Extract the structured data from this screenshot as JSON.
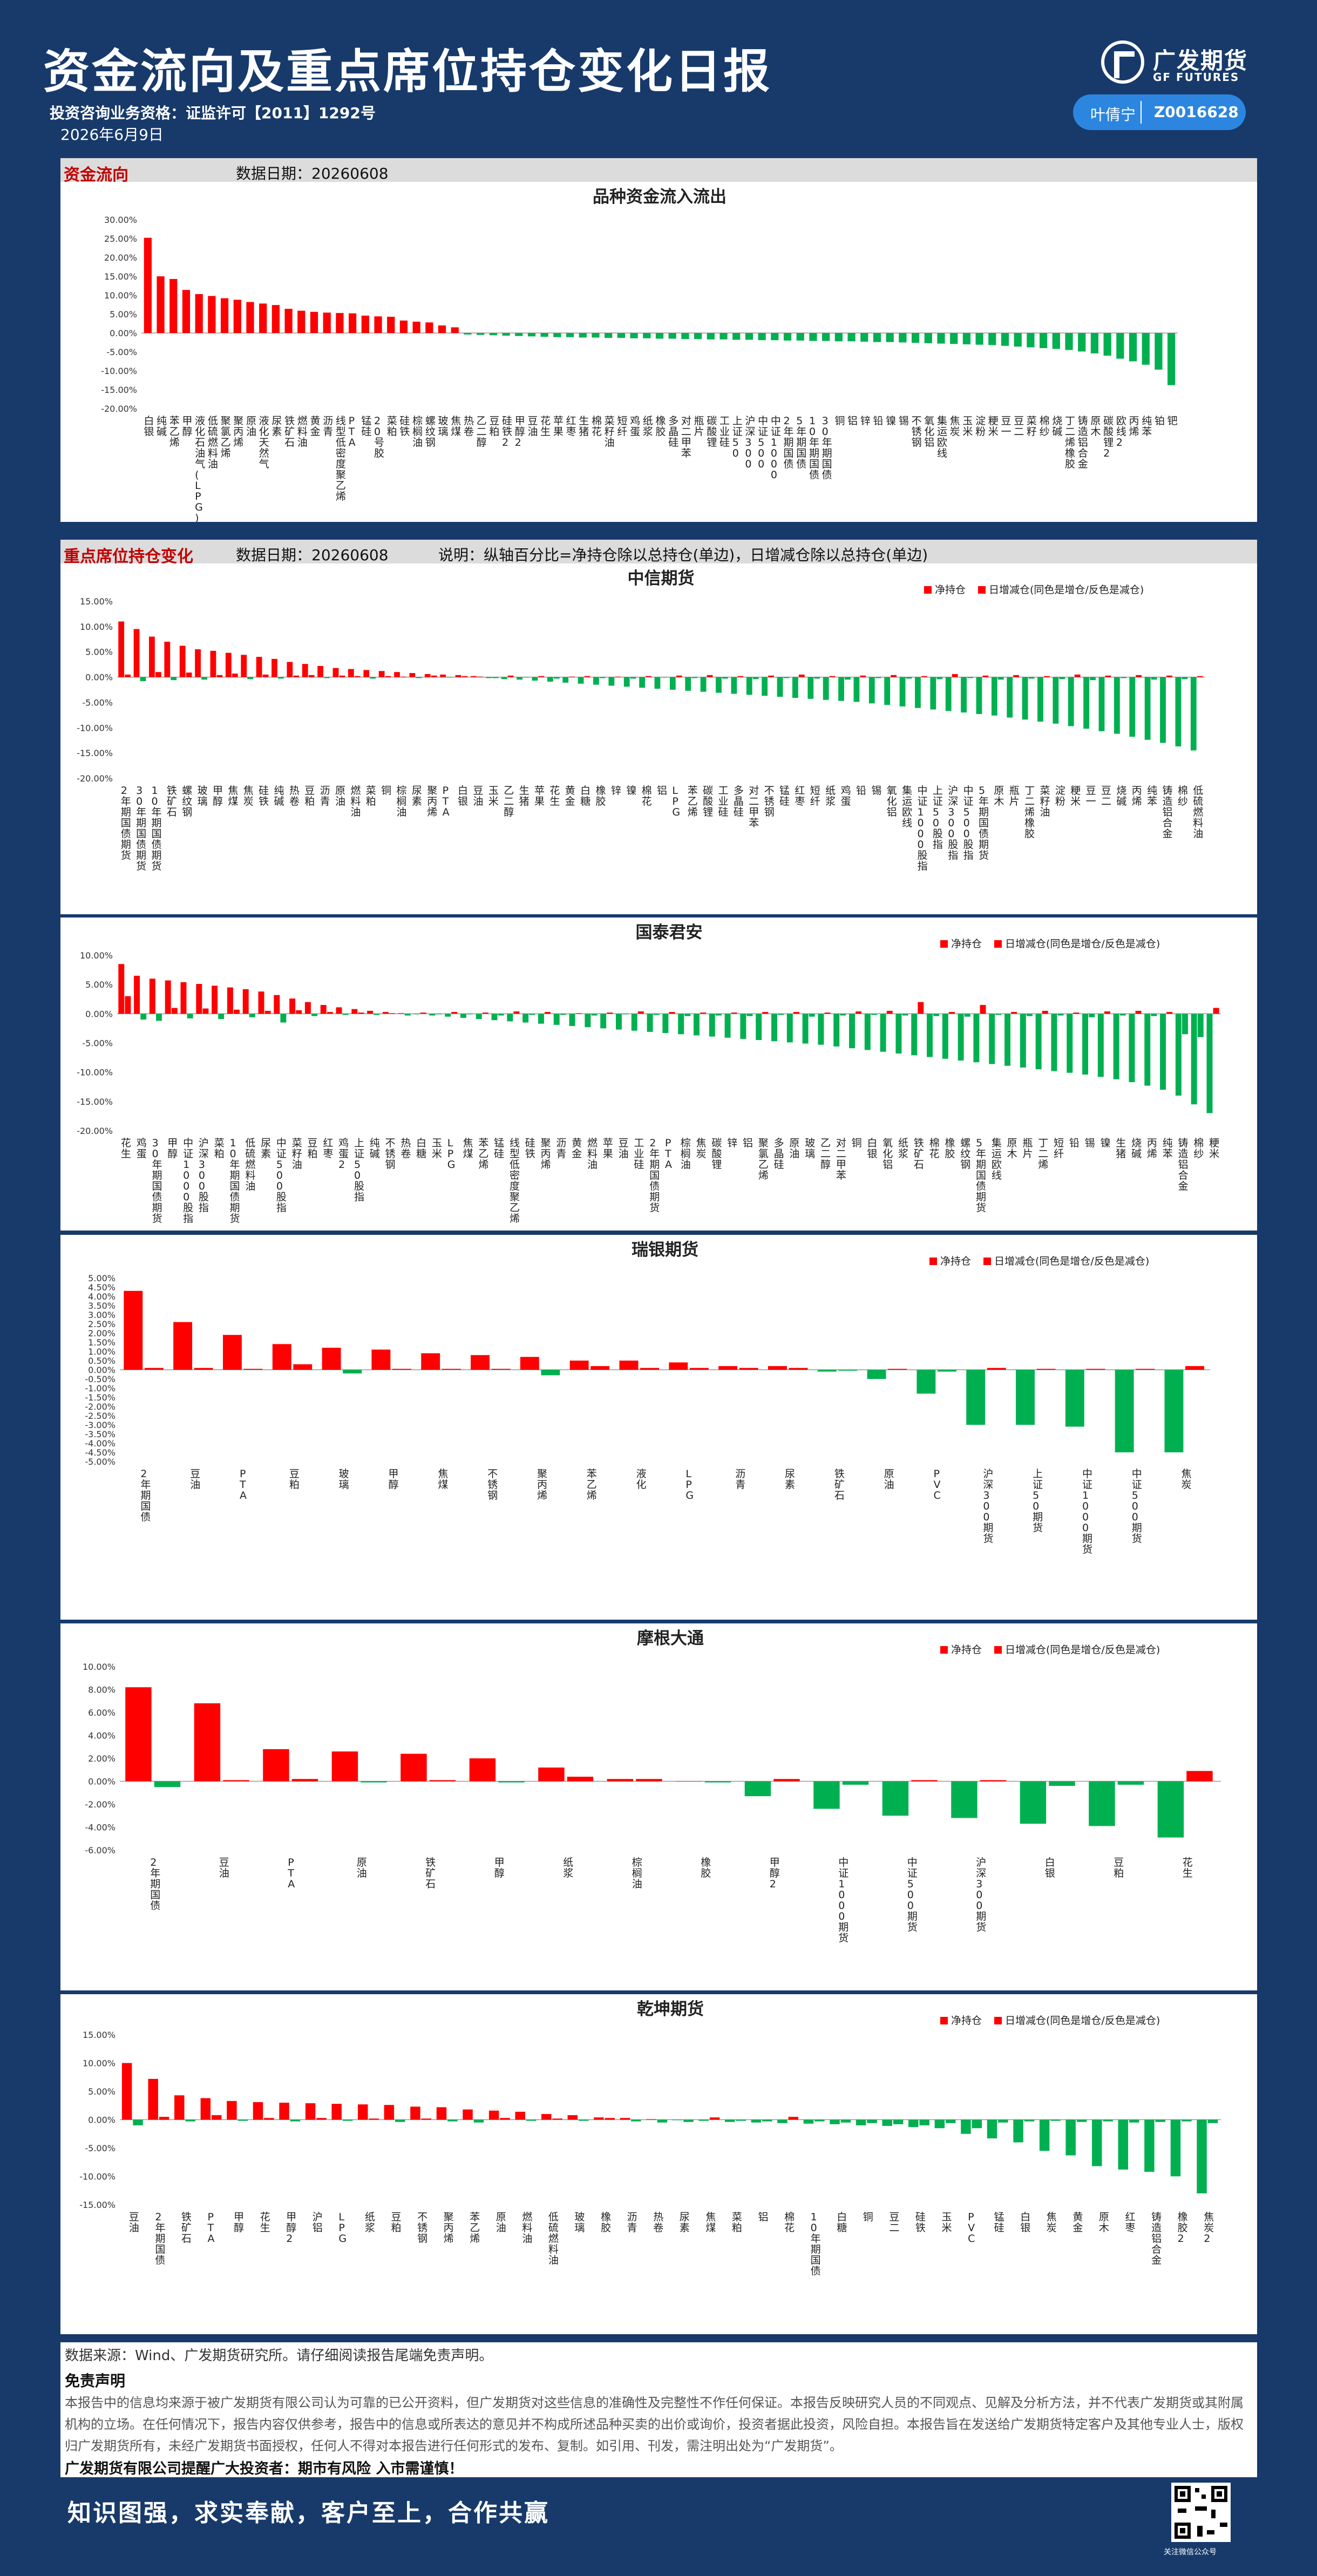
{
  "header": {
    "title": "资金流向及重点席位持仓变化日报",
    "license": "投资咨询业务资格：证监许可【2011】1292号",
    "date": "2026年6月9日",
    "logo_cn": "广发期货",
    "logo_en": "GF FUTURES",
    "analyst_name": "叶倩宁",
    "analyst_id": "Z0016628"
  },
  "colors": {
    "background": "#173a6b",
    "net": "#ff0000",
    "increase": "#00b050",
    "section_title": "#c00000"
  },
  "section1": {
    "name": "资金流向",
    "date": "数据日期：20260608"
  },
  "section2": {
    "name": "重点席位持仓变化",
    "date": "数据日期：20260608",
    "note": "说明：纵轴百分比=净持仓除以总持仓(单边)，日增减仓除以总持仓(单边)"
  },
  "legend": {
    "net": "净持仓",
    "change": "日增减仓(同色是增仓/反色是减仓)"
  },
  "chart_data": [
    {
      "type": "bar",
      "title": "品种资金流入流出",
      "ylabel": "",
      "ylim": [
        -20,
        30
      ],
      "ystep": 5,
      "categories": [
        "白银",
        "纯碱",
        "苯乙烯",
        "甲醇",
        "液化石油气(LPG)",
        "低硫燃料油",
        "聚氯乙烯",
        "聚丙烯",
        "原油",
        "液化天然气",
        "尿素",
        "铁矿石",
        "燃料油",
        "黄金",
        "沥青",
        "线型低密度聚乙烯",
        "PTA",
        "锰硅",
        "20号胶",
        "菜粕",
        "硅铁",
        "棕榈油",
        "螺纹钢",
        "玻璃",
        "焦煤",
        "热卷",
        "乙二醇",
        "豆粕",
        "硅铁2",
        "甲醇2",
        "豆油",
        "花生",
        "苹果",
        "红枣",
        "生猪",
        "棉花",
        "菜籽油",
        "短纤",
        "鸡蛋",
        "纸浆",
        "橡胶",
        "多晶硅",
        "对二甲苯",
        "瓶片",
        "碳酸锂",
        "工业硅",
        "上证50",
        "沪深300",
        "中证500",
        "中证1000",
        "2年期国债",
        "5年期国债",
        "10年期国债",
        "30年期国债",
        "铜",
        "铝",
        "锌",
        "铅",
        "镍",
        "锡",
        "不锈钢",
        "氧化铝",
        "集运欧线",
        "焦炭",
        "玉米",
        "淀粉",
        "粳米",
        "豆一",
        "豆二",
        "菜籽",
        "棉纱",
        "烧碱",
        "丁二烯橡胶",
        "铸造铝合金",
        "原木",
        "碳酸锂2",
        "欧线2",
        "丙烯",
        "纯苯",
        "铂",
        "钯"
      ],
      "values": [
        25.2,
        15,
        14.3,
        11.4,
        10.3,
        9.8,
        9.2,
        8.8,
        8.2,
        7.8,
        7.4,
        6.4,
        5.9,
        5.6,
        5.4,
        5.3,
        5.2,
        4.6,
        4.4,
        4.3,
        3.3,
        3.0,
        2.8,
        2.0,
        1.5,
        -0.4,
        -0.5,
        -0.6,
        -0.7,
        -0.8,
        -0.9,
        -1.0,
        -1.1,
        -1.1,
        -1.2,
        -1.2,
        -1.3,
        -1.3,
        -1.4,
        -1.4,
        -1.5,
        -1.5,
        -1.6,
        -1.6,
        -1.7,
        -1.7,
        -1.8,
        -1.8,
        -1.9,
        -1.9,
        -2.0,
        -2.0,
        -2.1,
        -2.1,
        -2.2,
        -2.2,
        -2.3,
        -2.4,
        -2.4,
        -2.5,
        -2.6,
        -2.7,
        -2.8,
        -2.9,
        -3.0,
        -3.1,
        -3.2,
        -3.4,
        -3.6,
        -3.8,
        -4.0,
        -4.2,
        -4.5,
        -4.9,
        -5.4,
        -6.0,
        -6.8,
        -7.5,
        -8.4,
        -9.7,
        -13.8
      ]
    },
    {
      "type": "bar",
      "title": "中信期货",
      "ylim": [
        -20,
        15
      ],
      "ystep": 5,
      "categories": [
        "2年期国债期货",
        "30年期国债期货",
        "10年期国债期货",
        "铁矿石",
        "螺纹钢",
        "玻璃",
        "甲醇",
        "焦煤",
        "焦炭",
        "硅铁",
        "纯碱",
        "热卷",
        "豆粕",
        "沥青",
        "原油",
        "燃料油",
        "菜粕",
        "铜",
        "棕榈油",
        "尿素",
        "聚丙烯",
        "PTA",
        "白银",
        "豆油",
        "玉米",
        "乙二醇",
        "生猪",
        "苹果",
        "花生",
        "黄金",
        "白糖",
        "橡胶",
        "锌",
        "镍",
        "棉花",
        "铝",
        "LPG",
        "苯乙烯",
        "碳酸锂",
        "工业硅",
        "多晶硅",
        "对二甲苯",
        "不锈钢",
        "锰硅",
        "红枣",
        "短纤",
        "纸浆",
        "鸡蛋",
        "铅",
        "锡",
        "氧化铝",
        "集运欧线",
        "中证1000股指",
        "上证50股指",
        "沪深300股指",
        "中证500股指",
        "5年期国债期货",
        "原木",
        "瓶片",
        "丁二烯橡胶",
        "菜籽油",
        "淀粉",
        "粳米",
        "豆一",
        "豆二",
        "烧碱",
        "丙烯",
        "纯苯",
        "铸造铝合金",
        "棉纱",
        "低硫燃料油"
      ],
      "net": [
        11.0,
        9.5,
        8.0,
        7.0,
        6.2,
        5.5,
        5.2,
        4.8,
        4.4,
        4.0,
        3.6,
        3.0,
        2.6,
        2.2,
        1.8,
        1.6,
        1.4,
        1.2,
        1.0,
        0.8,
        0.6,
        0.5,
        0.4,
        0.2,
        -0.2,
        -0.4,
        -0.5,
        -0.7,
        -0.9,
        -1.1,
        -1.3,
        -1.5,
        -1.7,
        -1.9,
        -2.1,
        -2.3,
        -2.5,
        -2.7,
        -2.9,
        -3.1,
        -3.3,
        -3.5,
        -3.7,
        -3.9,
        -4.1,
        -4.3,
        -4.5,
        -4.7,
        -4.9,
        -5.2,
        -5.5,
        -5.8,
        -6.1,
        -6.4,
        -6.7,
        -7.0,
        -7.3,
        -7.6,
        -8.0,
        -8.4,
        -8.8,
        -9.2,
        -9.7,
        -10.2,
        -10.7,
        -11.2,
        -11.8,
        -12.4,
        -13.0,
        -13.7,
        -14.5
      ],
      "change": [
        0.5,
        -0.8,
        1.0,
        -0.6,
        0.9,
        -0.5,
        0.4,
        0.7,
        -0.4,
        0.5,
        -0.3,
        0.3,
        0.4,
        -0.2,
        0.3,
        0.2,
        -0.3,
        0.2,
        0.1,
        -0.2,
        0.3,
        -0.1,
        0.2,
        0.1,
        -0.2,
        0.3,
        -0.1,
        0.2,
        -0.3,
        0.1,
        0.2,
        -0.2,
        0.1,
        -0.3,
        0.2,
        -0.1,
        0.3,
        -0.2,
        0.4,
        -0.3,
        0.2,
        -0.4,
        0.3,
        -0.2,
        0.5,
        -0.3,
        0.2,
        -0.5,
        0.3,
        -0.2,
        0.4,
        -0.3,
        0.2,
        -0.4,
        0.6,
        -0.2,
        0.3,
        -0.5,
        0.4,
        -0.3,
        0.2,
        -0.4,
        0.5,
        -0.6,
        0.3,
        -0.2,
        0.4,
        -0.5,
        0.3,
        -0.4,
        0.2
      ]
    },
    {
      "type": "bar",
      "title": "国泰君安",
      "ylim": [
        -20,
        10
      ],
      "ystep": 5,
      "categories": [
        "花生",
        "鸡蛋",
        "30年期国债期货",
        "甲醇",
        "中证1000股指",
        "沪深300股指",
        "菜粕",
        "10年期国债期货",
        "低硫燃料油",
        "尿素",
        "中证500股指",
        "菜籽油",
        "豆粕",
        "红枣",
        "鸡蛋2",
        "上证50股指",
        "纯碱",
        "不锈钢",
        "热卷",
        "白糖",
        "玉米",
        "LPG",
        "焦煤",
        "苯乙烯",
        "锰硅",
        "线型低密度聚乙烯",
        "硅铁",
        "聚丙烯",
        "沥青",
        "黄金",
        "燃料油",
        "苹果",
        "豆油",
        "工业硅",
        "2年期国债期货",
        "PTA",
        "棕榈油",
        "焦炭",
        "碳酸锂",
        "锌",
        "铝",
        "聚氯乙烯",
        "多晶硅",
        "原油",
        "玻璃",
        "乙二醇",
        "对二甲苯",
        "铜",
        "白银",
        "氧化铝",
        "纸浆",
        "铁矿石",
        "棉花",
        "橡胶",
        "螺纹钢",
        "5年期国债期货",
        "集运欧线",
        "原木",
        "瓶片",
        "丁二烯",
        "短纤",
        "铅",
        "锡",
        "镍",
        "生猪",
        "烧碱",
        "丙烯",
        "纯苯",
        "铸造铝合金",
        "棉纱",
        "粳米"
      ],
      "net": [
        8.5,
        6.5,
        6.0,
        5.7,
        5.4,
        5.1,
        4.8,
        4.5,
        4.2,
        3.8,
        3.2,
        2.6,
        2.0,
        1.5,
        1.1,
        0.8,
        0.5,
        0.3,
        0.1,
        -0.1,
        -0.3,
        -0.5,
        -0.7,
        -0.9,
        -1.1,
        -1.3,
        -1.5,
        -1.7,
        -1.9,
        -2.1,
        -2.3,
        -2.5,
        -2.7,
        -2.9,
        -3.1,
        -3.3,
        -3.5,
        -3.7,
        -3.9,
        -4.1,
        -4.3,
        -4.5,
        -4.7,
        -4.9,
        -5.1,
        -5.3,
        -5.6,
        -5.9,
        -6.2,
        -6.5,
        -6.8,
        -7.1,
        -7.4,
        -7.7,
        -8.0,
        -8.3,
        -8.6,
        -8.9,
        -9.2,
        -9.5,
        -9.8,
        -10.1,
        -10.4,
        -10.8,
        -11.2,
        -11.7,
        -12.3,
        -13.0,
        -14.0,
        -15.5,
        -17.0
      ],
      "change": [
        3.0,
        -1.0,
        -1.2,
        1.0,
        -0.8,
        0.9,
        -0.9,
        0.7,
        -0.6,
        0.5,
        -1.5,
        0.6,
        -0.4,
        0.3,
        -0.2,
        0.2,
        -0.2,
        0.1,
        -0.3,
        0.2,
        -0.1,
        0.3,
        -0.1,
        0.2,
        -0.3,
        0.4,
        -0.2,
        0.3,
        -0.2,
        0.1,
        -0.3,
        0.2,
        -0.1,
        0.4,
        -0.2,
        0.3,
        -0.4,
        0.2,
        -0.3,
        0.2,
        -0.4,
        0.3,
        -0.2,
        0.3,
        -0.5,
        0.2,
        -0.3,
        0.4,
        -0.2,
        0.5,
        -0.3,
        2.0,
        -0.4,
        0.3,
        -0.5,
        1.5,
        -0.2,
        0.3,
        -0.4,
        0.5,
        -0.3,
        0.2,
        -0.6,
        0.4,
        -0.3,
        0.5,
        -0.4,
        0.3,
        -3.5,
        -4.0,
        1.0
      ]
    },
    {
      "type": "bar",
      "title": "瑞银期货",
      "ylim": [
        -5,
        5
      ],
      "ystep": 0.5,
      "categories": [
        "2年期国债",
        "豆油",
        "PTA",
        "豆粕",
        "玻璃",
        "甲醇",
        "焦煤",
        "不锈钢",
        "聚丙烯",
        "苯乙烯",
        "液化",
        "LPG",
        "沥青",
        "尿素",
        "铁矿石",
        "原油",
        "PVC",
        "沪深300期货",
        "上证50期货",
        "中证1000期货",
        "中证500期货",
        "焦炭"
      ],
      "net": [
        4.3,
        2.6,
        1.9,
        1.4,
        1.2,
        1.1,
        0.9,
        0.8,
        0.7,
        0.5,
        0.5,
        0.4,
        0.2,
        0.2,
        -0.1,
        -0.5,
        -1.3,
        -3.0,
        -3.0,
        -3.1,
        -4.5,
        -4.5
      ],
      "change": [
        0.1,
        0.1,
        0.05,
        0.3,
        -0.2,
        0.05,
        0.05,
        0.05,
        -0.3,
        0.2,
        0.1,
        0.1,
        0.1,
        0.1,
        -0.05,
        0.05,
        -0.1,
        0.1,
        0.05,
        0.05,
        0.05,
        0.2
      ]
    },
    {
      "type": "bar",
      "title": "摩根大通",
      "ylim": [
        -6,
        10
      ],
      "ystep": 2,
      "categories": [
        "2年期国债",
        "豆油",
        "PTA",
        "原油",
        "铁矿石",
        "甲醇",
        "纸浆",
        "棕榈油",
        "橡胶",
        "甲醇2",
        "中证1000期货",
        "中证500期货",
        "沪深300期货",
        "白银",
        "豆粕",
        "花生"
      ],
      "net": [
        8.2,
        6.8,
        2.8,
        2.6,
        2.4,
        2.0,
        1.2,
        0.2,
        0.0,
        -1.3,
        -2.4,
        -3.0,
        -3.2,
        -3.7,
        -3.9,
        -4.9
      ],
      "change": [
        -0.5,
        0.1,
        0.2,
        -0.1,
        0.1,
        -0.1,
        0.4,
        0.2,
        -0.1,
        0.2,
        -0.3,
        0.1,
        0.1,
        -0.4,
        -0.3,
        0.9
      ]
    },
    {
      "type": "bar",
      "title": "乾坤期货",
      "ylim": [
        -15,
        15
      ],
      "ystep": 5,
      "categories": [
        "豆油",
        "2年期国债",
        "铁矿石",
        "PTA",
        "甲醇",
        "花生",
        "甲醇2",
        "沪铝",
        "LPG",
        "纸浆",
        "豆粕",
        "不锈钢",
        "聚丙烯",
        "苯乙烯",
        "原油",
        "燃料油",
        "低硫燃料油",
        "玻璃",
        "橡胶",
        "沥青",
        "热卷",
        "尿素",
        "焦煤",
        "菜粕",
        "铝",
        "棉花",
        "10年期国债",
        "白糖",
        "铜",
        "豆二",
        "硅铁",
        "玉米",
        "PVC",
        "锰硅",
        "白银",
        "焦炭",
        "黄金",
        "原木",
        "红枣",
        "铸造铝合金",
        "橡胶2",
        "焦炭2"
      ],
      "net": [
        10.0,
        7.2,
        4.3,
        3.8,
        3.3,
        3.1,
        3.0,
        2.9,
        2.8,
        2.7,
        2.6,
        2.3,
        2.2,
        1.8,
        1.6,
        1.4,
        1.0,
        0.8,
        0.4,
        0.3,
        0.1,
        -0.1,
        -0.2,
        -0.4,
        -0.5,
        -0.6,
        -0.7,
        -0.8,
        -1.0,
        -1.1,
        -1.3,
        -1.5,
        -2.5,
        -3.3,
        -4.0,
        -5.5,
        -6.3,
        -8.2,
        -8.8,
        -9.2,
        -10.0,
        -13.0
      ],
      "change": [
        -1.0,
        0.5,
        -0.3,
        0.8,
        -0.2,
        0.3,
        -0.3,
        0.3,
        -0.2,
        0.2,
        -0.4,
        0.2,
        -0.3,
        -0.5,
        0.3,
        -0.2,
        0.2,
        -0.2,
        0.3,
        -0.3,
        -0.5,
        -0.4,
        0.4,
        -0.2,
        -0.3,
        0.5,
        -0.3,
        -0.5,
        -0.6,
        -0.8,
        -1.0,
        -0.6,
        -1.5,
        -0.5,
        -0.3,
        -0.2,
        -0.4,
        -0.3,
        -0.5,
        -0.4,
        -0.3,
        -0.6
      ]
    }
  ],
  "footer": {
    "source": "数据来源：Wind、广发期货研究所。请仔细阅读报告尾端免责声明。",
    "disclaimer_title": "免责声明",
    "disclaimer": "本报告中的信息均来源于被广发期货有限公司认为可靠的已公开资料，但广发期货对这些信息的准确性及完整性不作任何保证。本报告反映研究人员的不同观点、见解及分析方法，并不代表广发期货或其附属机构的立场。在任何情况下，报告内容仅供参考，报告中的信息或所表达的意见并不构成所述品种买卖的出价或询价，投资者据此投资，风险自担。本报告旨在发送给广发期货特定客户及其他专业人士，版权归广发期货所有，未经广发期货书面授权，任何人不得对本报告进行任何形式的发布、复制。如引用、刊发，需注明出处为“广发期货”。",
    "reminder": "广发期货有限公司提醒广大投资者：期市有风险 入市需谨慎！",
    "slogan": "知识图强，求实奉献，客户至上，合作共赢",
    "qr_caption": "关注微信公众号"
  }
}
